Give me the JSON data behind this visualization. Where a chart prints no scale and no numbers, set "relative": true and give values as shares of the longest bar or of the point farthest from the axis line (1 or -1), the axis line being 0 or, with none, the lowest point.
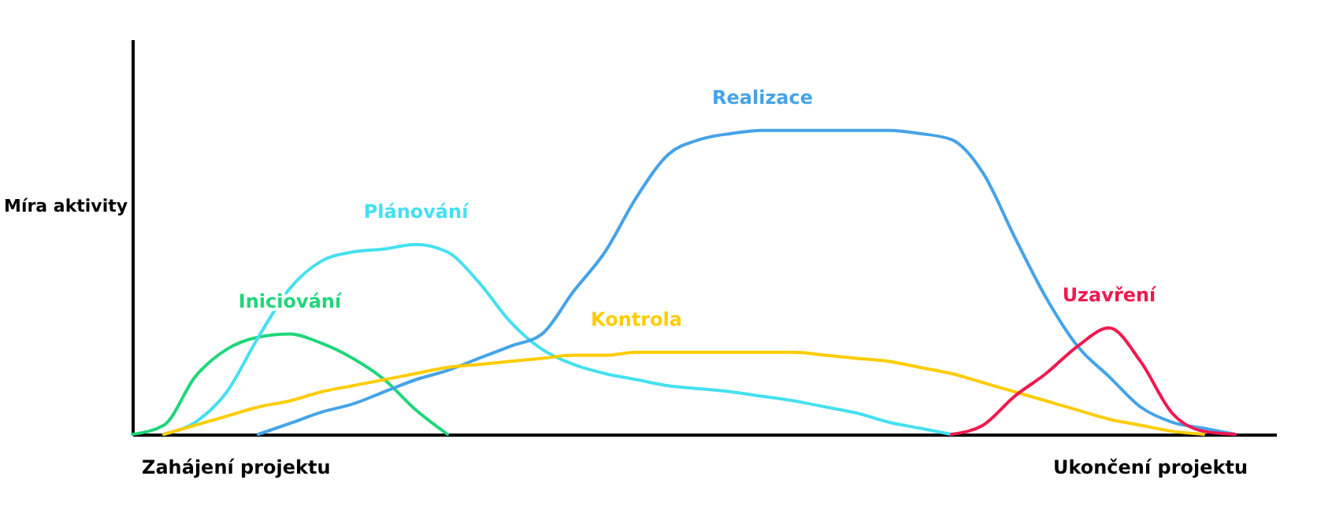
{
  "chart_data": {
    "type": "line",
    "relative": true,
    "ylabel": "Míra aktivity",
    "annotations": [
      "Zahájení projektu",
      "Ukončení projektu"
    ],
    "categories": [
      null,
      null,
      null,
      null,
      null,
      null,
      null,
      null,
      null,
      null,
      null,
      null,
      null,
      null,
      null,
      null,
      null,
      null,
      null,
      null,
      null,
      null,
      null,
      null,
      null,
      null,
      null,
      null,
      null,
      null,
      null,
      null,
      null,
      null,
      null,
      null
    ],
    "series": [
      {
        "name": "Iniciování",
        "color": "#1fd67a",
        "values": [
          0,
          0.03,
          0.19,
          0.28,
          0.32,
          0.33,
          0.3,
          0.25,
          0.18,
          0.08,
          0,
          null,
          null,
          null,
          null,
          null,
          null,
          null,
          null,
          null,
          null,
          null,
          null,
          null,
          null,
          null,
          null,
          null,
          null,
          null,
          null,
          null,
          null,
          null,
          null,
          null
        ]
      },
      {
        "name": "Plánování",
        "color": "#45e0f0",
        "values": [
          null,
          0,
          0.04,
          0.14,
          0.32,
          0.48,
          0.57,
          0.6,
          0.61,
          0.625,
          0.6,
          0.5,
          0.37,
          0.28,
          0.23,
          0.2,
          0.18,
          0.16,
          0.15,
          0.14,
          0.125,
          0.11,
          0.09,
          0.07,
          0.04,
          0.02,
          0,
          null,
          null,
          null,
          null,
          null,
          null,
          null,
          null,
          null
        ]
      },
      {
        "name": "Realizace",
        "color": "#45a3e8",
        "values": [
          null,
          null,
          null,
          null,
          0,
          0.036,
          0.073,
          0.1,
          0.14,
          0.18,
          0.21,
          0.25,
          0.29,
          0.33,
          0.47,
          0.6,
          0.78,
          0.92,
          0.97,
          0.99,
          1,
          1,
          1,
          1,
          1,
          0.99,
          0.97,
          0.86,
          0.65,
          0.45,
          0.29,
          0.19,
          0.09,
          0.04,
          0.02,
          0
        ]
      },
      {
        "name": "Kontrola",
        "color": "#ffcc00",
        "values": [
          null,
          0,
          0.03,
          0.06,
          0.09,
          0.11,
          0.14,
          0.16,
          0.18,
          0.2,
          0.22,
          0.23,
          0.24,
          0.25,
          0.26,
          0.26,
          0.27,
          0.27,
          0.27,
          0.27,
          0.27,
          0.27,
          0.26,
          0.25,
          0.24,
          0.22,
          0.2,
          0.17,
          0.14,
          0.11,
          0.08,
          0.05,
          0.03,
          0.01,
          0,
          null
        ]
      },
      {
        "name": "Uzavření",
        "color": "#f0194f",
        "values": [
          null,
          null,
          null,
          null,
          null,
          null,
          null,
          null,
          null,
          null,
          null,
          null,
          null,
          null,
          null,
          null,
          null,
          null,
          null,
          null,
          null,
          null,
          null,
          null,
          null,
          null,
          0,
          0.03,
          0.125,
          0.2,
          0.29,
          0.35,
          0.24,
          0.07,
          0.01,
          0
        ]
      }
    ]
  }
}
